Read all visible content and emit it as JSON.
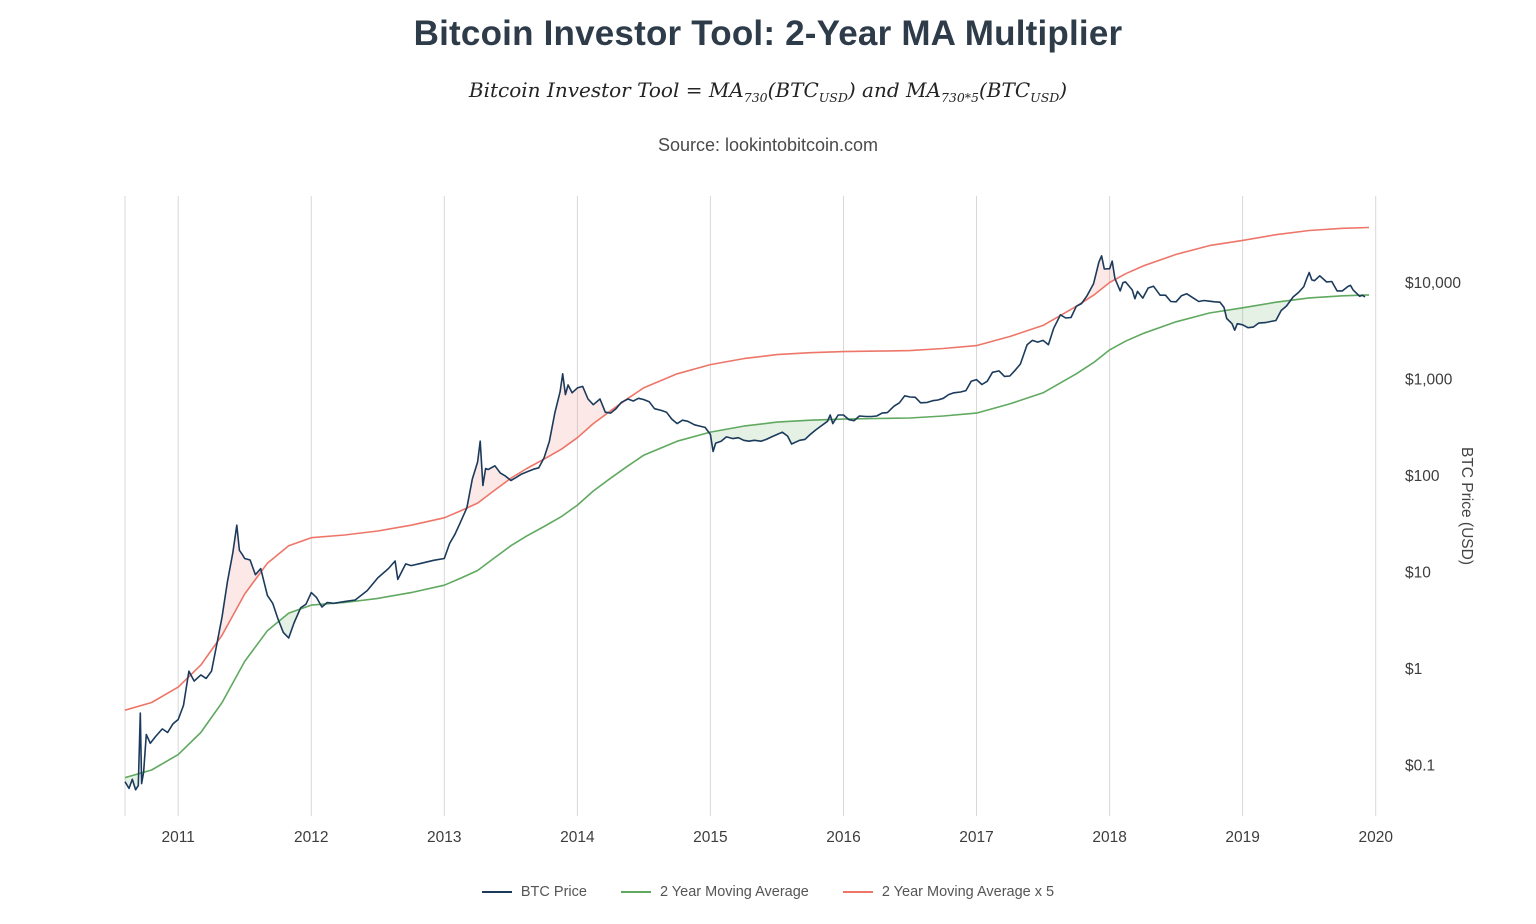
{
  "header": {
    "title": "Bitcoin Investor Tool: 2-Year MA Multiplier",
    "formula": {
      "f1": "Bitcoin Investor Tool = MA",
      "f2": "730",
      "f3": "(BTC",
      "f4": "USD",
      "f5": ") and MA",
      "f6": "730*5",
      "f7": "(BTC",
      "f8": "USD",
      "f9": ")"
    },
    "source": "Source: lookintobitcoin.com"
  },
  "chart_data": {
    "type": "line",
    "title": "Bitcoin Investor Tool: 2-Year MA Multiplier",
    "xlabel": "",
    "ylabel": "BTC Price (USD)",
    "y_scale": "log",
    "grid": "vertical-only",
    "legend_position": "bottom",
    "x_range": [
      2010.6,
      2020.07
    ],
    "y_range": [
      0.03,
      80000
    ],
    "x_ticks": [
      2011,
      2012,
      2013,
      2014,
      2015,
      2016,
      2017,
      2018,
      2019,
      2020
    ],
    "y_ticks": [
      {
        "label": "$10,000",
        "value": 10000
      },
      {
        "label": "$1,000",
        "value": 1000
      },
      {
        "label": "$100",
        "value": 100
      },
      {
        "label": "$10",
        "value": 10
      },
      {
        "label": "$1",
        "value": 1
      },
      {
        "label": "$0.1",
        "value": 0.1
      }
    ],
    "colors": {
      "grid": "#d8d8d8",
      "tick_text": "#3d3d3d",
      "axis_title": "#444444",
      "price_below_ma_fill": "rgba(96,169,96,0.16)",
      "price_above_x5_fill": "rgba(237,118,105,0.16)"
    },
    "series": [
      {
        "name": "BTC Price",
        "color": "#1b3a5c",
        "width": 1.6,
        "x": [
          2010.6,
          2010.63,
          2010.655,
          2010.68,
          2010.7,
          2010.715,
          2010.725,
          2010.74,
          2010.76,
          2010.79,
          2010.83,
          2010.88,
          2010.92,
          2010.96,
          2011.0,
          2011.04,
          2011.08,
          2011.12,
          2011.17,
          2011.21,
          2011.25,
          2011.29,
          2011.33,
          2011.37,
          2011.41,
          2011.44,
          2011.46,
          2011.48,
          2011.5,
          2011.54,
          2011.58,
          2011.62,
          2011.67,
          2011.71,
          2011.75,
          2011.79,
          2011.83,
          2011.87,
          2011.92,
          2011.96,
          2012.0,
          2012.04,
          2012.08,
          2012.12,
          2012.17,
          2012.25,
          2012.33,
          2012.42,
          2012.5,
          2012.58,
          2012.63,
          2012.65,
          2012.71,
          2012.75,
          2012.83,
          2012.92,
          2013.0,
          2013.04,
          2013.08,
          2013.12,
          2013.17,
          2013.21,
          2013.25,
          2013.27,
          2013.29,
          2013.31,
          2013.33,
          2013.38,
          2013.42,
          2013.46,
          2013.5,
          2013.54,
          2013.58,
          2013.63,
          2013.67,
          2013.71,
          2013.75,
          2013.79,
          2013.83,
          2013.87,
          2013.89,
          2013.91,
          2013.93,
          2013.96,
          2014.0,
          2014.04,
          2014.08,
          2014.12,
          2014.17,
          2014.21,
          2014.25,
          2014.29,
          2014.33,
          2014.38,
          2014.42,
          2014.46,
          2014.5,
          2014.54,
          2014.58,
          2014.63,
          2014.67,
          2014.71,
          2014.75,
          2014.79,
          2014.83,
          2014.88,
          2014.92,
          2014.96,
          2015.0,
          2015.02,
          2015.04,
          2015.08,
          2015.12,
          2015.17,
          2015.21,
          2015.25,
          2015.29,
          2015.33,
          2015.38,
          2015.42,
          2015.46,
          2015.5,
          2015.54,
          2015.58,
          2015.61,
          2015.67,
          2015.71,
          2015.75,
          2015.79,
          2015.83,
          2015.88,
          2015.9,
          2015.92,
          2015.96,
          2016.0,
          2016.04,
          2016.08,
          2016.12,
          2016.17,
          2016.21,
          2016.25,
          2016.29,
          2016.33,
          2016.38,
          2016.42,
          2016.46,
          2016.5,
          2016.54,
          2016.58,
          2016.63,
          2016.67,
          2016.71,
          2016.75,
          2016.79,
          2016.83,
          2016.88,
          2016.92,
          2016.96,
          2017.0,
          2017.04,
          2017.08,
          2017.12,
          2017.17,
          2017.21,
          2017.25,
          2017.29,
          2017.33,
          2017.38,
          2017.42,
          2017.46,
          2017.5,
          2017.54,
          2017.58,
          2017.63,
          2017.67,
          2017.71,
          2017.75,
          2017.79,
          2017.83,
          2017.88,
          2017.92,
          2017.94,
          2017.96,
          2018.0,
          2018.02,
          2018.04,
          2018.08,
          2018.1,
          2018.12,
          2018.17,
          2018.19,
          2018.21,
          2018.25,
          2018.29,
          2018.33,
          2018.38,
          2018.42,
          2018.46,
          2018.5,
          2018.54,
          2018.58,
          2018.63,
          2018.67,
          2018.71,
          2018.75,
          2018.79,
          2018.83,
          2018.86,
          2018.88,
          2018.92,
          2018.94,
          2018.96,
          2019.0,
          2019.04,
          2019.08,
          2019.12,
          2019.17,
          2019.21,
          2019.25,
          2019.29,
          2019.33,
          2019.38,
          2019.42,
          2019.46,
          2019.48,
          2019.5,
          2019.52,
          2019.54,
          2019.58,
          2019.63,
          2019.67,
          2019.71,
          2019.75,
          2019.79,
          2019.81,
          2019.83,
          2019.88,
          2019.9,
          2019.92
        ],
        "values": [
          0.068,
          0.058,
          0.072,
          0.056,
          0.062,
          0.35,
          0.065,
          0.085,
          0.21,
          0.17,
          0.2,
          0.24,
          0.22,
          0.27,
          0.3,
          0.42,
          0.95,
          0.75,
          0.87,
          0.8,
          0.95,
          1.8,
          3.5,
          8.0,
          16,
          31,
          17,
          15.5,
          14,
          13.5,
          9.5,
          11,
          5.8,
          4.8,
          3.3,
          2.4,
          2.1,
          3.0,
          4.3,
          4.7,
          6.2,
          5.5,
          4.4,
          4.9,
          4.8,
          5.0,
          5.2,
          6.5,
          8.8,
          11,
          13.2,
          8.5,
          12.3,
          11.8,
          12.5,
          13.4,
          14,
          20,
          25,
          33,
          47,
          93,
          140,
          230,
          80,
          120,
          117,
          128,
          108,
          100,
          90,
          97,
          105,
          112,
          118,
          122,
          155,
          230,
          450,
          750,
          1150,
          700,
          880,
          730,
          820,
          850,
          630,
          550,
          630,
          460,
          450,
          500,
          580,
          630,
          600,
          640,
          620,
          590,
          500,
          480,
          460,
          390,
          350,
          380,
          370,
          340,
          330,
          320,
          270,
          180,
          220,
          230,
          255,
          245,
          250,
          235,
          230,
          235,
          230,
          240,
          255,
          270,
          285,
          260,
          215,
          235,
          240,
          270,
          300,
          330,
          370,
          430,
          350,
          430,
          430,
          385,
          375,
          420,
          415,
          415,
          420,
          450,
          455,
          530,
          575,
          680,
          660,
          655,
          575,
          580,
          605,
          615,
          640,
          700,
          730,
          745,
          770,
          960,
          1000,
          890,
          960,
          1190,
          1230,
          1080,
          1090,
          1250,
          1450,
          2300,
          2550,
          2450,
          2550,
          2300,
          3400,
          4700,
          4350,
          4400,
          5750,
          6150,
          7400,
          9900,
          16500,
          19200,
          14000,
          14100,
          16900,
          11200,
          8300,
          10100,
          10300,
          8500,
          6900,
          8200,
          7000,
          8900,
          9300,
          7500,
          7500,
          6450,
          6400,
          7400,
          7750,
          7000,
          6450,
          6600,
          6500,
          6400,
          6350,
          5600,
          4300,
          3800,
          3250,
          3800,
          3700,
          3450,
          3500,
          3850,
          3900,
          4000,
          4100,
          5200,
          5800,
          7200,
          8000,
          9200,
          11000,
          12900,
          10800,
          10600,
          11900,
          10300,
          10400,
          8300,
          8300,
          9200,
          9500,
          8500,
          7300,
          7500,
          7200
        ]
      },
      {
        "name": "2 Year Moving Average",
        "color": "#60a960",
        "width": 1.6,
        "x": [
          2010.6,
          2010.8,
          2011.0,
          2011.17,
          2011.33,
          2011.5,
          2011.67,
          2011.83,
          2012.0,
          2012.25,
          2012.5,
          2012.75,
          2013.0,
          2013.12,
          2013.25,
          2013.37,
          2013.5,
          2013.62,
          2013.75,
          2013.88,
          2014.0,
          2014.12,
          2014.25,
          2014.37,
          2014.5,
          2014.75,
          2015.0,
          2015.25,
          2015.5,
          2015.75,
          2016.0,
          2016.25,
          2016.5,
          2016.75,
          2017.0,
          2017.25,
          2017.5,
          2017.75,
          2017.88,
          2018.0,
          2018.12,
          2018.25,
          2018.5,
          2018.75,
          2019.0,
          2019.25,
          2019.5,
          2019.75,
          2019.95
        ],
        "values": [
          0.075,
          0.09,
          0.13,
          0.22,
          0.45,
          1.2,
          2.5,
          3.8,
          4.6,
          4.9,
          5.4,
          6.2,
          7.4,
          8.7,
          10.5,
          14,
          19,
          24,
          30,
          38,
          50,
          70,
          95,
          125,
          165,
          230,
          286,
          330,
          363,
          380,
          390,
          395,
          400,
          420,
          450,
          560,
          730,
          1150,
          1500,
          2030,
          2500,
          3000,
          3970,
          4900,
          5550,
          6350,
          7030,
          7400,
          7550
        ]
      },
      {
        "name": "2 Year Moving Average x 5",
        "color": "#ed7669",
        "width": 1.6,
        "x": [
          2010.6,
          2010.8,
          2011.0,
          2011.17,
          2011.33,
          2011.5,
          2011.67,
          2011.83,
          2012.0,
          2012.25,
          2012.5,
          2012.75,
          2013.0,
          2013.12,
          2013.25,
          2013.37,
          2013.5,
          2013.62,
          2013.75,
          2013.88,
          2014.0,
          2014.12,
          2014.25,
          2014.37,
          2014.5,
          2014.75,
          2015.0,
          2015.25,
          2015.5,
          2015.75,
          2016.0,
          2016.25,
          2016.5,
          2016.75,
          2017.0,
          2017.25,
          2017.5,
          2017.75,
          2017.88,
          2018.0,
          2018.12,
          2018.25,
          2018.5,
          2018.75,
          2019.0,
          2019.25,
          2019.5,
          2019.75,
          2019.95
        ],
        "values": [
          0.375,
          0.45,
          0.65,
          1.1,
          2.25,
          6,
          12.5,
          19,
          23,
          24.5,
          27,
          31,
          37,
          43.5,
          52.5,
          70,
          95,
          120,
          150,
          190,
          250,
          350,
          475,
          625,
          825,
          1150,
          1430,
          1650,
          1815,
          1900,
          1950,
          1975,
          2000,
          2100,
          2250,
          2800,
          3650,
          5750,
          7500,
          10150,
          12500,
          15000,
          19850,
          24500,
          27750,
          31750,
          35150,
          37000,
          37750
        ]
      }
    ]
  },
  "legend": {
    "items": [
      "BTC Price",
      "2 Year Moving Average",
      "2 Year Moving Average x 5"
    ]
  }
}
